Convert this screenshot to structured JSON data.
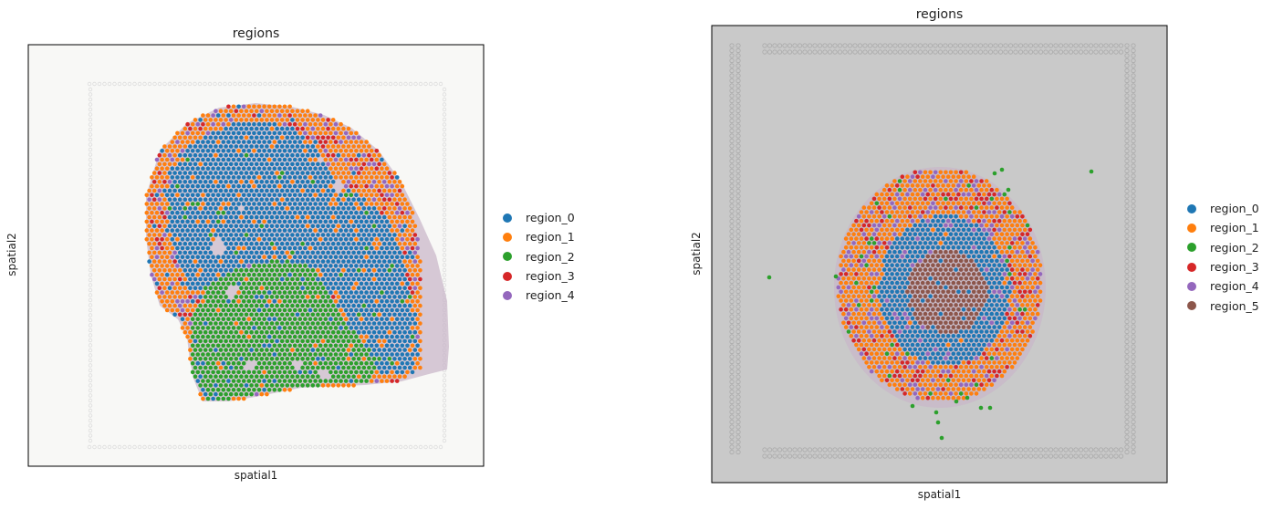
{
  "chart_data": [
    {
      "type": "scatter",
      "title": "regions",
      "xlabel": "spatial1",
      "ylabel": "spatial2",
      "legend_placement": "right",
      "background": "#f8f8f6",
      "grid": false,
      "series": [
        {
          "name": "region_0",
          "color": "#1f77b4"
        },
        {
          "name": "region_1",
          "color": "#ff7f0e"
        },
        {
          "name": "region_2",
          "color": "#2ca02c"
        },
        {
          "name": "region_3",
          "color": "#d62728"
        },
        {
          "name": "region_4",
          "color": "#9467bd"
        }
      ]
    },
    {
      "type": "scatter",
      "title": "regions",
      "xlabel": "spatial1",
      "ylabel": "spatial2",
      "legend_placement": "right",
      "background": "#c9c9c9",
      "grid": false,
      "series": [
        {
          "name": "region_0",
          "color": "#1f77b4"
        },
        {
          "name": "region_1",
          "color": "#ff7f0e"
        },
        {
          "name": "region_2",
          "color": "#2ca02c"
        },
        {
          "name": "region_3",
          "color": "#d62728"
        },
        {
          "name": "region_4",
          "color": "#9467bd"
        },
        {
          "name": "region_5",
          "color": "#8c564b"
        }
      ]
    }
  ]
}
